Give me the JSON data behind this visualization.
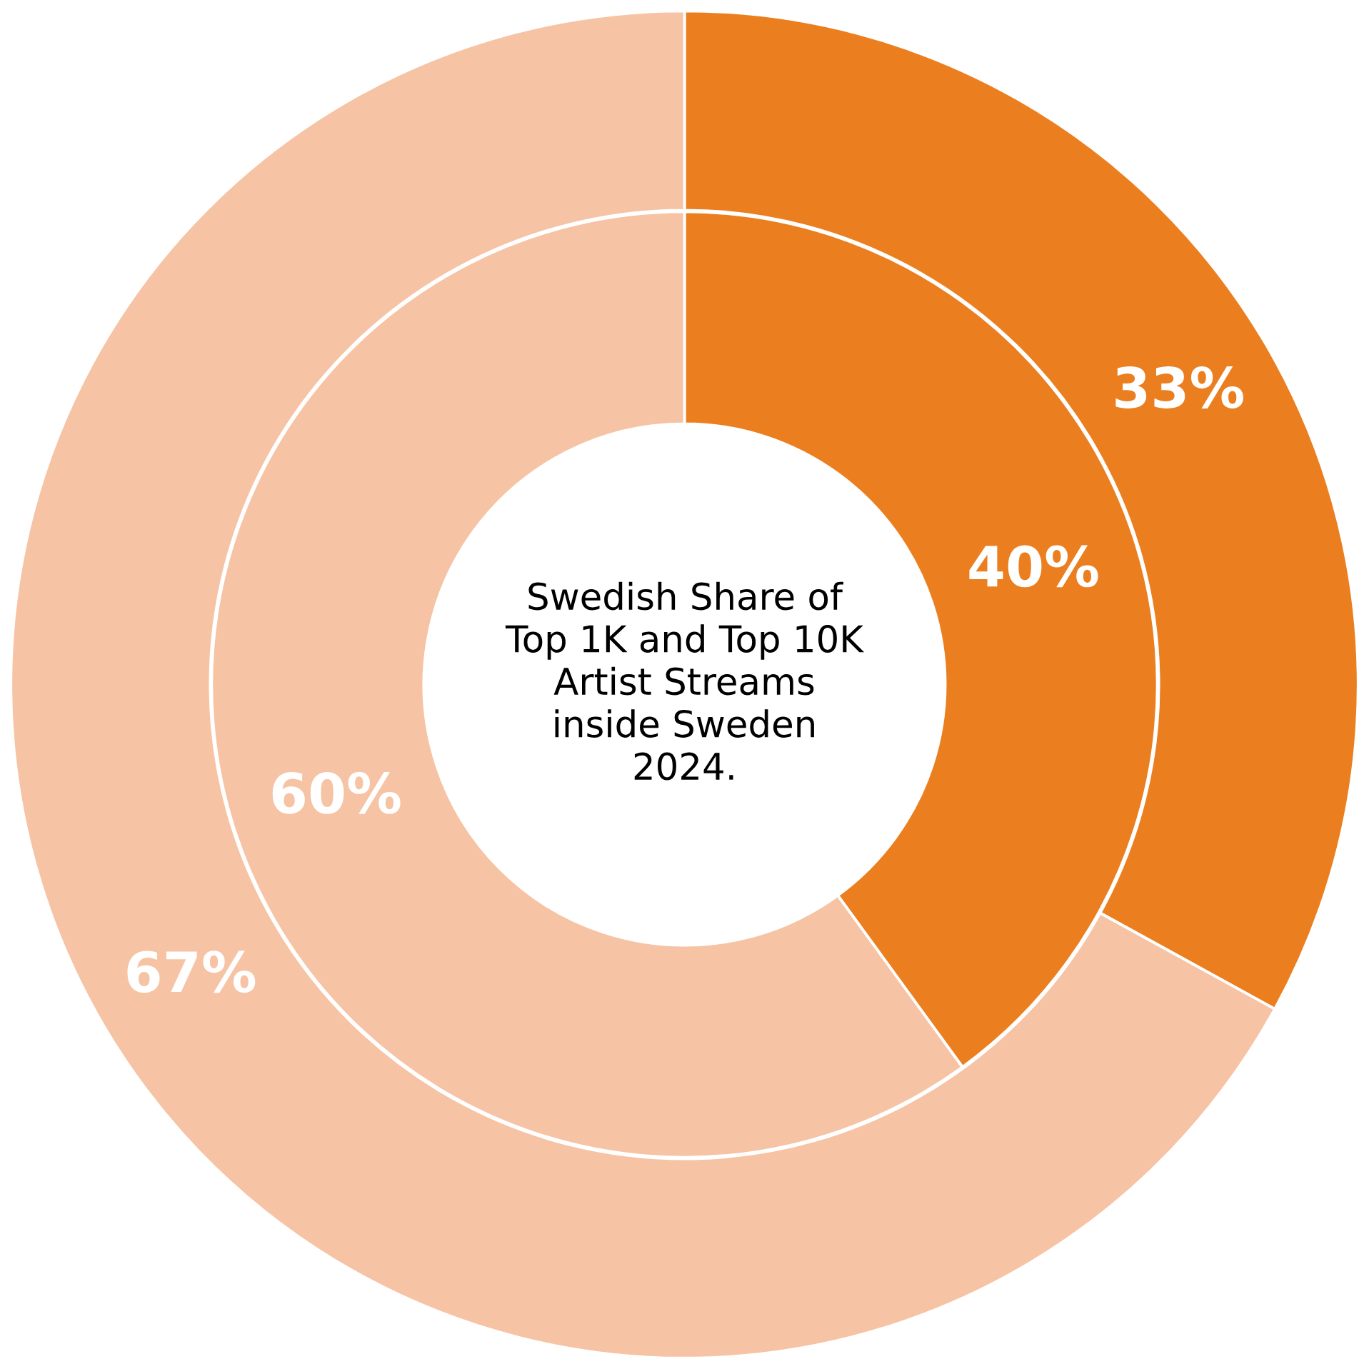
{
  "chart_data": {
    "type": "donut",
    "title": "Swedish Share of\nTop 1K and Top 10K\nArtist Streams\ninside Sweden\n2024.",
    "categories": [
      null,
      null
    ],
    "series": [
      {
        "values": [
          33,
          67
        ],
        "colors": [
          "#eb7f20",
          "#f6c3a4"
        ],
        "value_labels": [
          "33%",
          "67%"
        ]
      },
      {
        "values": [
          40,
          60
        ],
        "colors": [
          "#eb7f20",
          "#f6c3a4"
        ],
        "value_labels": [
          "40%",
          "60%"
        ]
      }
    ]
  }
}
